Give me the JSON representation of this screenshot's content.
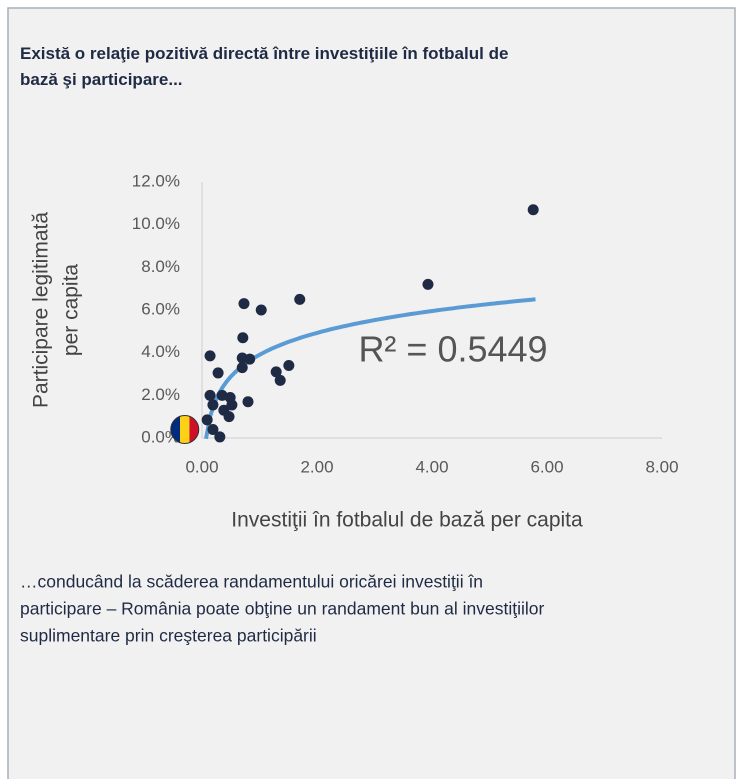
{
  "chart_data": {
    "type": "scatter",
    "title": "Există o relaţie pozitivă directă între investiţiile în fotbalul de bază şi participare...",
    "xlabel": "Investiţii în fotbalul de bază per capita",
    "ylabel": [
      "Participare legitimată",
      "per capita"
    ],
    "annotation": "R² = 0.5449",
    "footnote": [
      "…conducând la scăderea randamentului oricărei investiţii în",
      "participare – România poate obţine un randament bun al investiţiilor",
      "suplimentare prin creşterea participării"
    ],
    "color": "#1f2a44",
    "x": [
      5.76,
      3.93,
      1.7,
      0.73,
      1.03,
      0.71,
      0.14,
      0.7,
      0.83,
      1.51,
      1.29,
      1.36,
      0.28,
      0.7,
      0.8,
      0.49,
      0.38,
      0.47,
      0.19,
      0.09,
      0.31,
      0.19,
      0.52,
      0.35,
      0.14
    ],
    "values": [
      10.7,
      7.2,
      6.5,
      6.3,
      6.0,
      4.7,
      3.85,
      3.75,
      3.7,
      3.4,
      3.1,
      2.7,
      3.05,
      3.3,
      1.7,
      1.9,
      1.3,
      1.0,
      1.55,
      0.85,
      0.05,
      0.4,
      1.55,
      2.0,
      2.0
    ],
    "highlight": {
      "x": -0.3,
      "y": 0.4
    },
    "trendline": {
      "a": 1.48,
      "b": 3.9,
      "x_range": [
        0.07,
        5.8
      ],
      "color": "#5b9bd5"
    },
    "xlim": [
      0,
      8
    ],
    "ylim": [
      0,
      12
    ],
    "xticks": [
      {
        "value": 0,
        "label": "0.00"
      },
      {
        "value": 2,
        "label": "2.00"
      },
      {
        "value": 4,
        "label": "4.00"
      },
      {
        "value": 6,
        "label": "6.00"
      },
      {
        "value": 8,
        "label": "8.00"
      }
    ],
    "yticks": [
      {
        "value": 0,
        "label": "0.0%"
      },
      {
        "value": 2,
        "label": "2.0%"
      },
      {
        "value": 4,
        "label": "4.0%"
      },
      {
        "value": 6,
        "label": "6.0%"
      },
      {
        "value": 8,
        "label": "8.0%"
      },
      {
        "value": 10,
        "label": "10.0%"
      },
      {
        "value": 12,
        "label": "12.0%"
      }
    ]
  }
}
